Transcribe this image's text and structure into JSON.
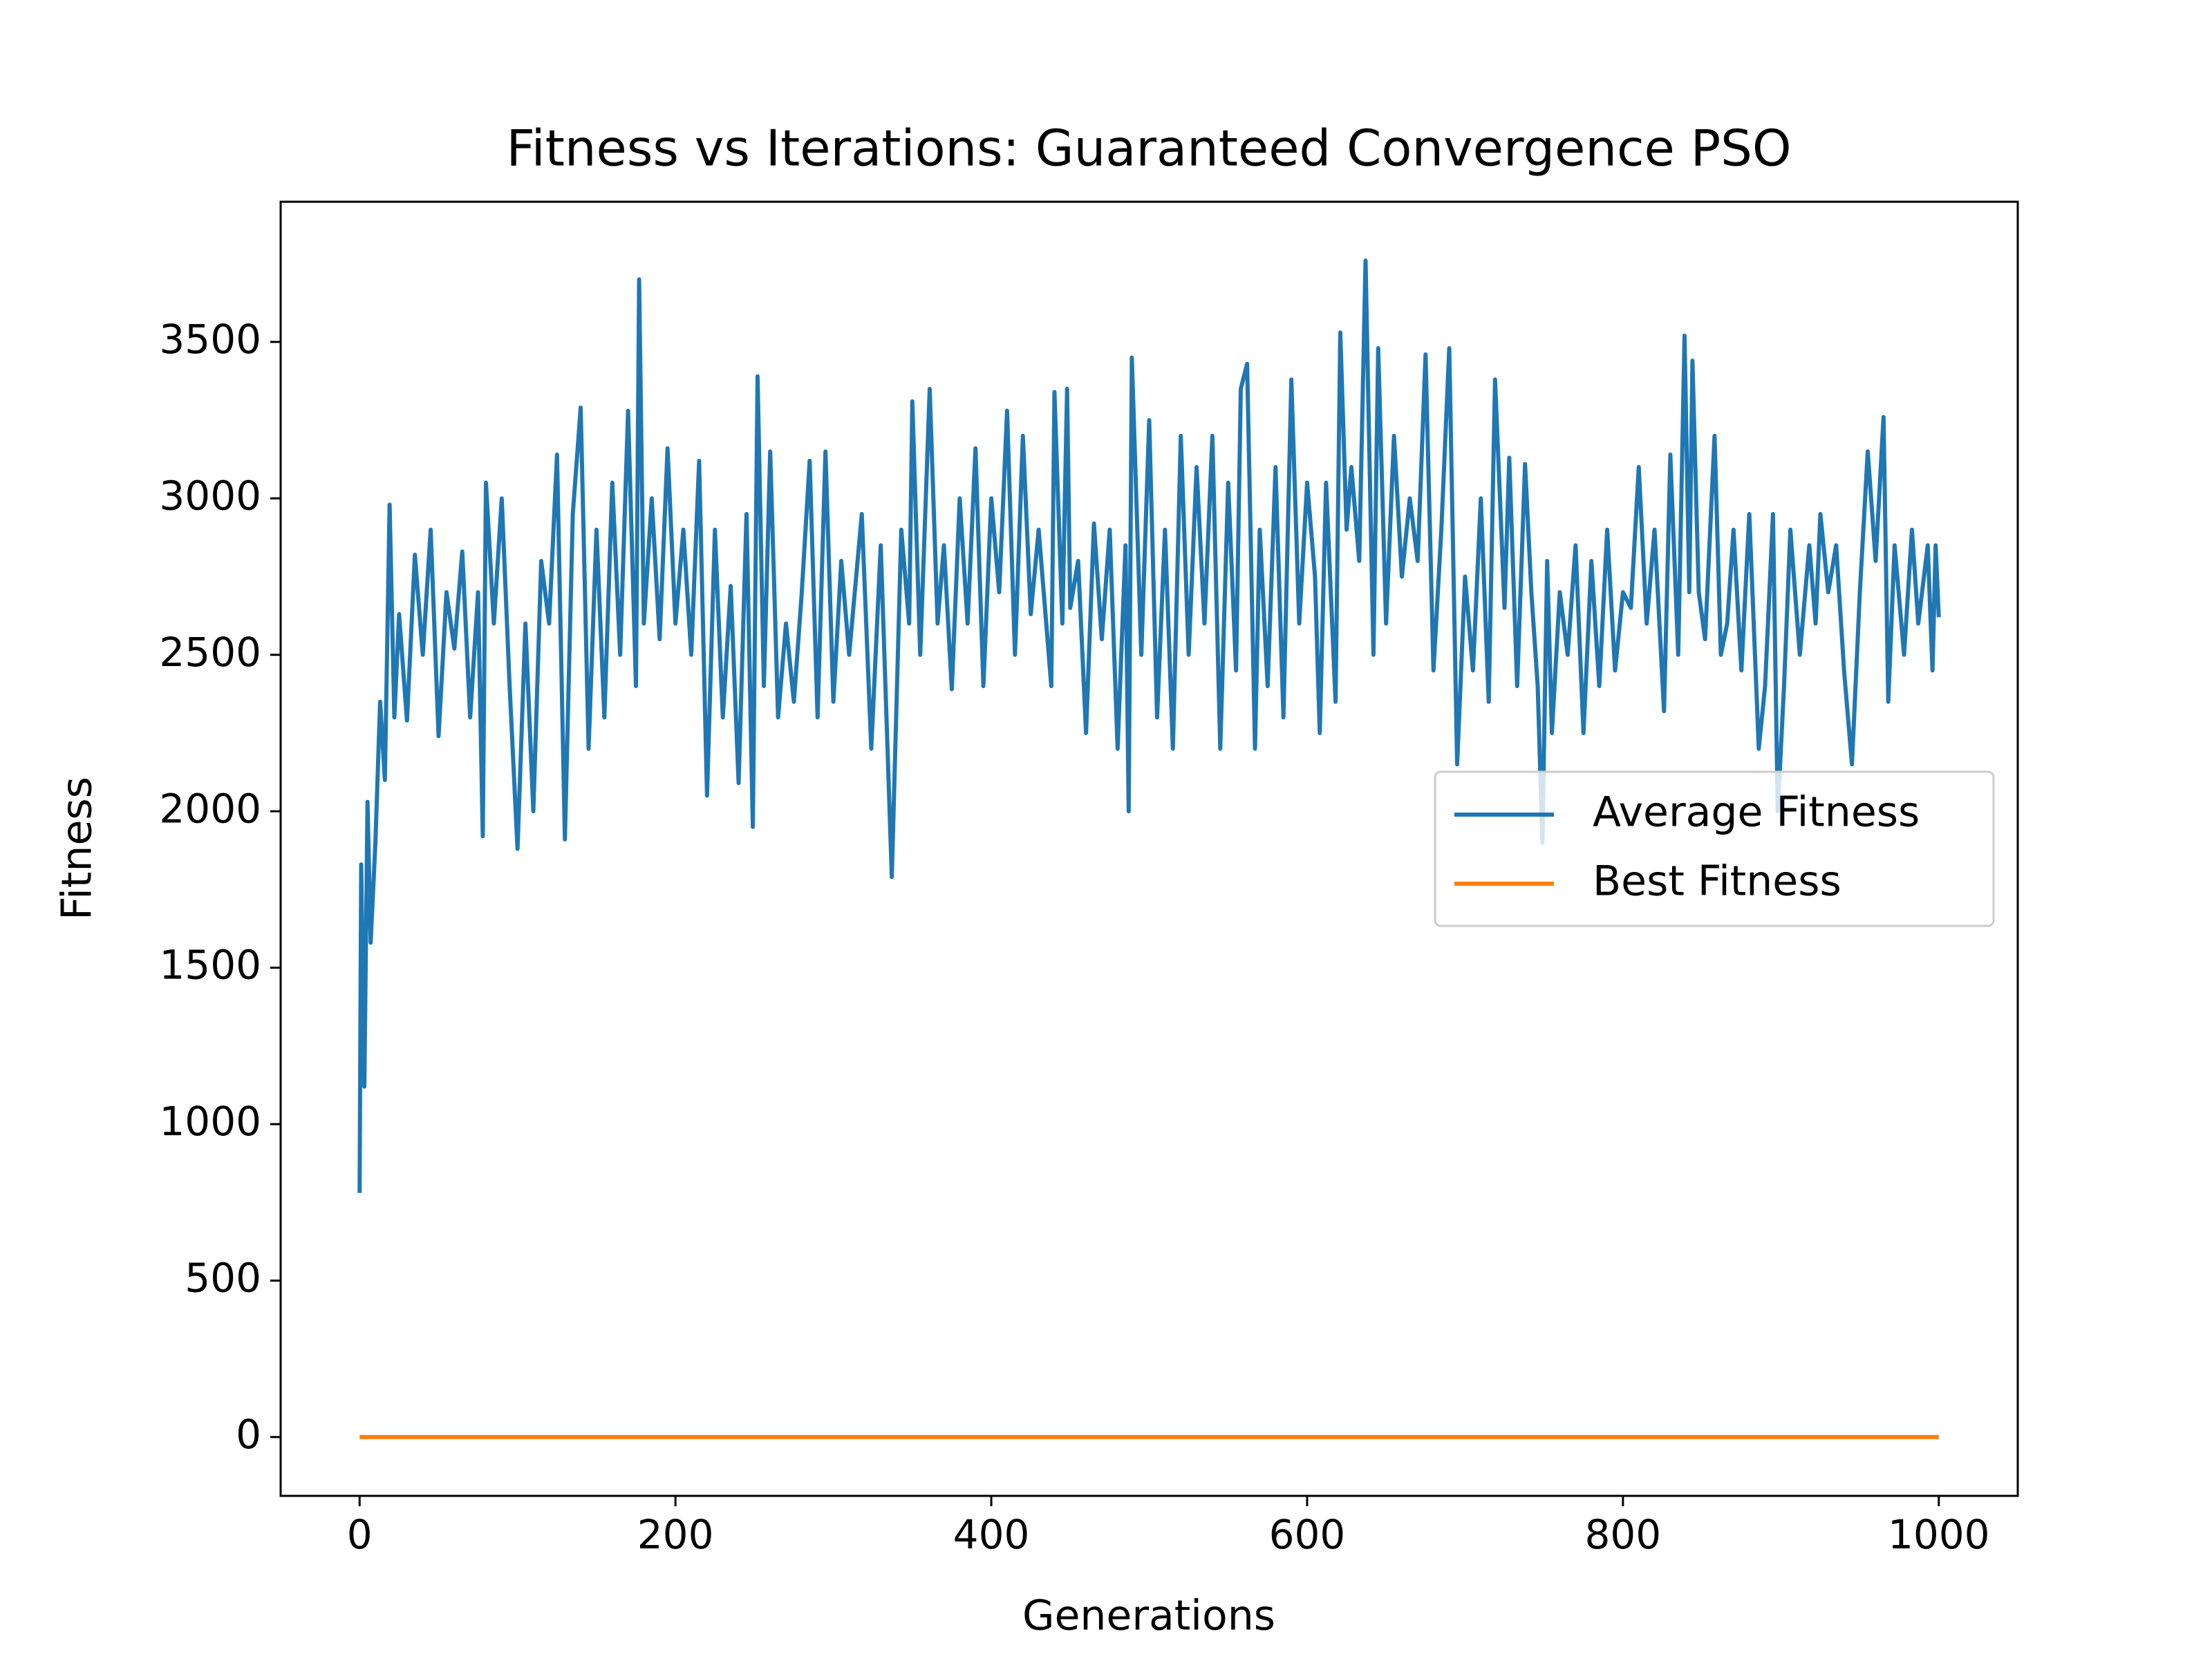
{
  "chart_data": {
    "type": "line",
    "title": "Fitness vs Iterations: Guaranteed Convergence PSO",
    "x_label": "Generations",
    "y_label": "Fitness",
    "xlim": [
      -50,
      1050
    ],
    "ylim": [
      -188,
      3948
    ],
    "xticks": [
      0,
      200,
      400,
      600,
      800,
      1000
    ],
    "yticks": [
      0,
      500,
      1000,
      1500,
      2000,
      2500,
      3000,
      3500
    ],
    "legend": "center right",
    "series": [
      {
        "name": "Average Fitness",
        "color": "#1f77b4",
        "x": [
          0,
          1,
          3,
          5,
          7,
          10,
          13,
          16,
          19,
          22,
          25,
          30,
          35,
          40,
          45,
          50,
          55,
          60,
          65,
          70,
          75,
          78,
          80,
          85,
          90,
          95,
          100,
          105,
          110,
          115,
          120,
          125,
          130,
          135,
          140,
          145,
          150,
          155,
          160,
          165,
          170,
          175,
          177,
          180,
          185,
          190,
          195,
          200,
          205,
          210,
          215,
          220,
          225,
          230,
          235,
          240,
          245,
          249,
          252,
          256,
          260,
          265,
          270,
          275,
          280,
          285,
          290,
          295,
          300,
          305,
          310,
          318,
          324,
          330,
          337,
          343,
          348,
          350,
          355,
          361,
          366,
          370,
          375,
          380,
          385,
          390,
          395,
          400,
          405,
          410,
          415,
          420,
          425,
          430,
          438,
          440,
          445,
          448,
          450,
          455,
          460,
          465,
          470,
          475,
          480,
          485,
          487,
          489,
          495,
          500,
          505,
          510,
          515,
          520,
          525,
          530,
          535,
          540,
          545,
          550,
          555,
          558,
          562,
          567,
          570,
          575,
          580,
          585,
          590,
          595,
          600,
          605,
          608,
          612,
          618,
          621,
          625,
          628,
          633,
          637,
          640,
          642,
          645,
          650,
          655,
          660,
          665,
          670,
          675,
          680,
          685,
          690,
          695,
          700,
          705,
          710,
          715,
          719,
          725,
          728,
          733,
          738,
          742,
          746,
          749,
          752,
          755,
          760,
          765,
          770,
          775,
          780,
          785,
          790,
          795,
          800,
          805,
          810,
          815,
          820,
          826,
          830,
          835,
          839,
          842,
          844,
          848,
          852,
          858,
          862,
          866,
          870,
          875,
          880,
          886,
          890,
          895,
          898,
          902,
          906,
          912,
          918,
          922,
          925,
          930,
          935,
          940,
          945,
          950,
          955,
          960,
          965,
          968,
          972,
          978,
          983,
          987,
          993,
          996,
          998,
          1000
        ],
        "values": [
          780,
          1830,
          1120,
          2030,
          1580,
          1900,
          2350,
          2100,
          2980,
          2300,
          2630,
          2290,
          2820,
          2500,
          2900,
          2240,
          2700,
          2520,
          2830,
          2300,
          2700,
          1920,
          3050,
          2600,
          3000,
          2400,
          1880,
          2600,
          2000,
          2800,
          2600,
          3140,
          1910,
          2950,
          3290,
          2200,
          2900,
          2300,
          3050,
          2500,
          3280,
          2400,
          3700,
          2600,
          3000,
          2550,
          3160,
          2600,
          2900,
          2500,
          3120,
          2050,
          2900,
          2300,
          2720,
          2090,
          2950,
          1950,
          3390,
          2400,
          3150,
          2300,
          2600,
          2350,
          2700,
          3120,
          2300,
          3150,
          2350,
          2800,
          2500,
          2950,
          2200,
          2850,
          1790,
          2900,
          2600,
          3310,
          2500,
          3350,
          2600,
          2850,
          2390,
          3000,
          2600,
          3160,
          2400,
          3000,
          2700,
          3280,
          2500,
          3200,
          2630,
          2900,
          2400,
          3340,
          2600,
          3350,
          2650,
          2800,
          2250,
          2920,
          2550,
          2900,
          2200,
          2850,
          2000,
          3450,
          2500,
          3250,
          2300,
          2900,
          2200,
          3200,
          2500,
          3100,
          2600,
          3200,
          2200,
          3050,
          2450,
          3350,
          3430,
          2200,
          2900,
          2400,
          3100,
          2300,
          3380,
          2600,
          3050,
          2750,
          2250,
          3050,
          2350,
          3530,
          2900,
          3100,
          2800,
          3760,
          3000,
          2500,
          3480,
          2600,
          3200,
          2750,
          3000,
          2800,
          3460,
          2450,
          2900,
          3480,
          2150,
          2750,
          2450,
          3000,
          2350,
          3380,
          2650,
          3130,
          2400,
          3110,
          2700,
          2400,
          1900,
          2800,
          2250,
          2700,
          2500,
          2850,
          2250,
          2800,
          2400,
          2900,
          2450,
          2700,
          2650,
          3100,
          2600,
          2900,
          2320,
          3140,
          2500,
          3520,
          2700,
          3440,
          2700,
          2550,
          3200,
          2500,
          2600,
          2900,
          2450,
          2950,
          2200,
          2400,
          2950,
          2000,
          2400,
          2900,
          2500,
          2850,
          2600,
          2950,
          2700,
          2850,
          2450,
          2150,
          2700,
          3150,
          2800,
          3260,
          2350,
          2850,
          2500,
          2900,
          2600,
          2850,
          2450,
          2850,
          2620
        ]
      },
      {
        "name": "Best Fitness",
        "color": "#ff7f0e",
        "x": [
          0,
          1000
        ],
        "values": [
          0,
          0
        ]
      }
    ]
  }
}
